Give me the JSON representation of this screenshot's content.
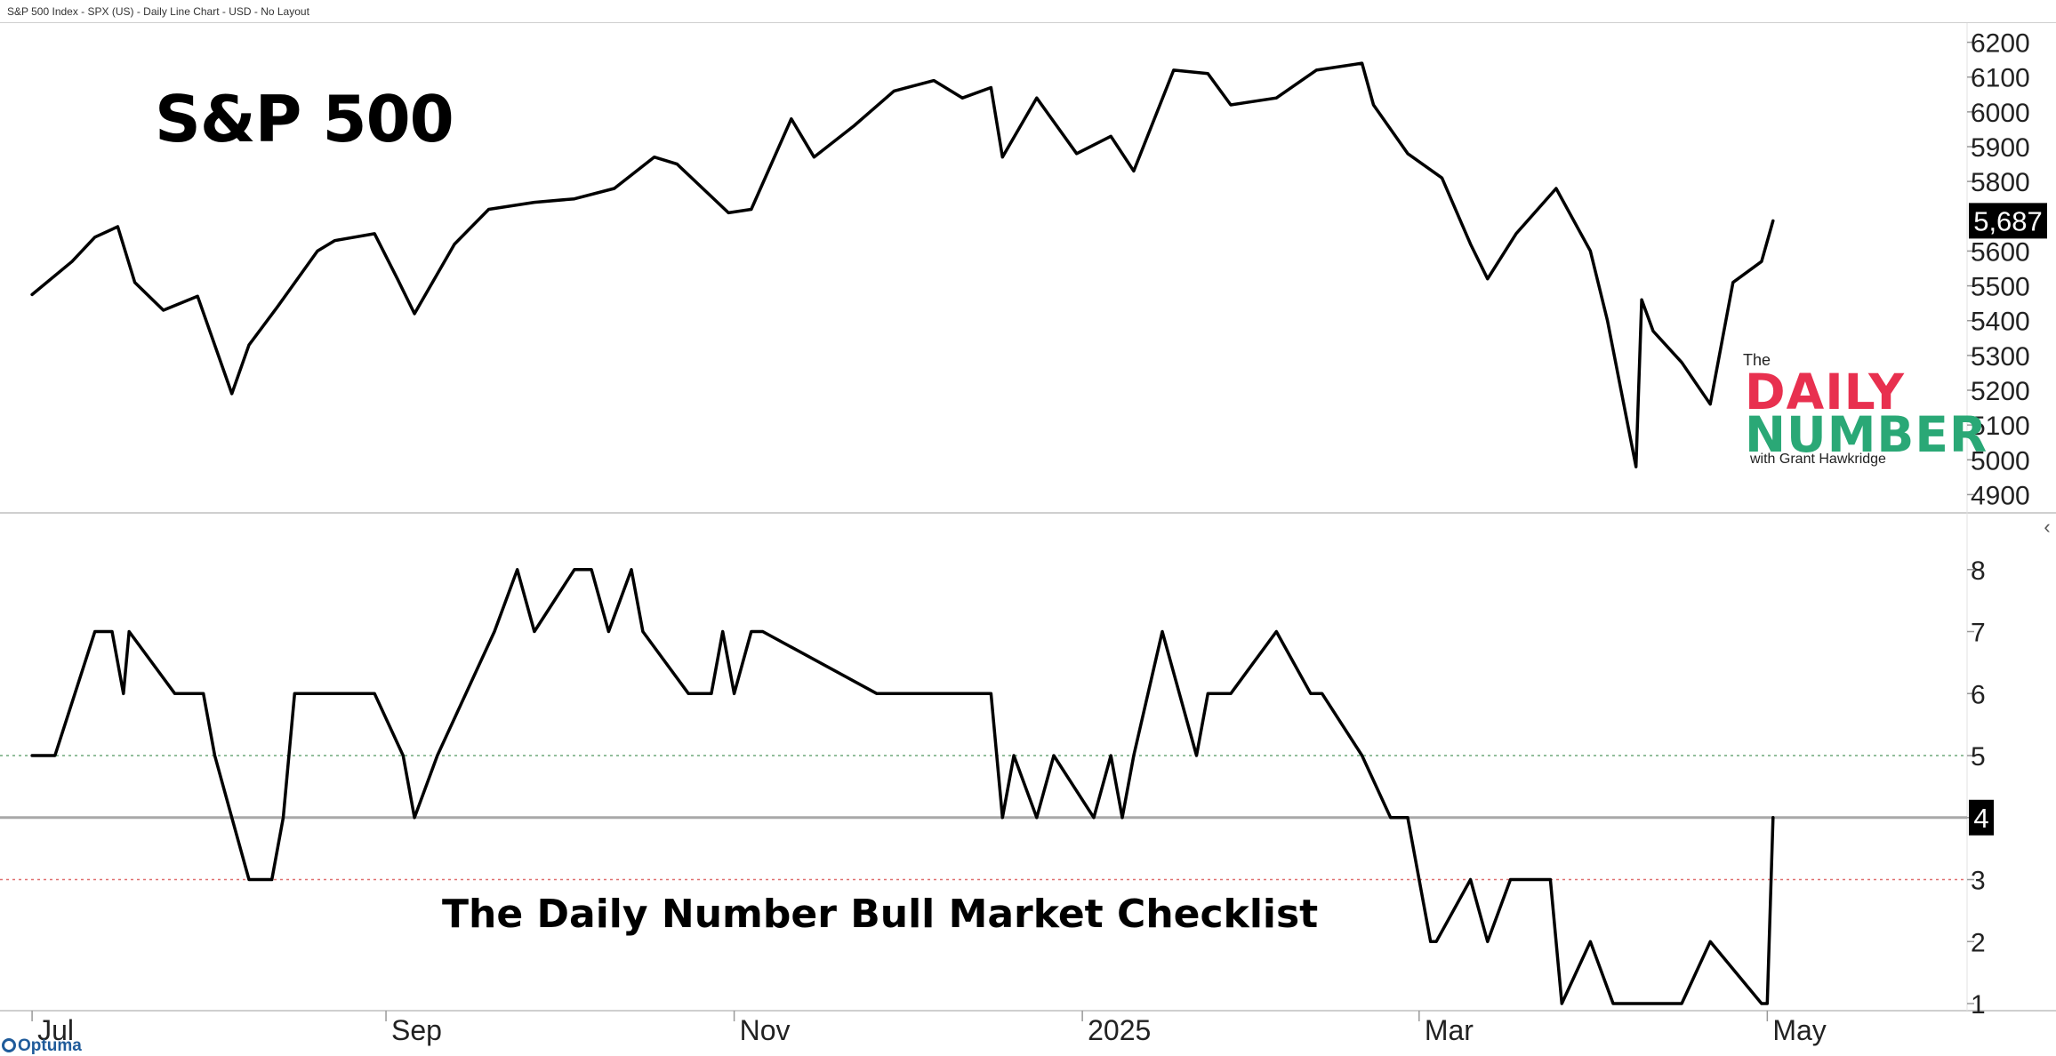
{
  "page_header": "S&P 500 Index - SPX (US) - Daily Line Chart - USD - No Layout",
  "logo": {
    "the": "The",
    "word1": "DAILY",
    "word2": "NUMBER",
    "byline": "with Grant Hawkridge",
    "red": "#e8304f",
    "green": "#2aa876"
  },
  "footer_brand": "Optuma",
  "side_arrow": "‹",
  "chart_data": [
    {
      "type": "line",
      "title": "S&P 500",
      "x": [
        "2024-07-01",
        "2024-07-08",
        "2024-07-12",
        "2024-07-16",
        "2024-07-19",
        "2024-07-24",
        "2024-07-30",
        "2024-08-05",
        "2024-08-08",
        "2024-08-13",
        "2024-08-20",
        "2024-08-23",
        "2024-08-30",
        "2024-09-03",
        "2024-09-06",
        "2024-09-13",
        "2024-09-19",
        "2024-09-27",
        "2024-10-04",
        "2024-10-11",
        "2024-10-18",
        "2024-10-22",
        "2024-10-31",
        "2024-11-04",
        "2024-11-11",
        "2024-11-15",
        "2024-11-22",
        "2024-11-29",
        "2024-12-06",
        "2024-12-11",
        "2024-12-16",
        "2024-12-18",
        "2024-12-24",
        "2024-12-31",
        "2025-01-06",
        "2025-01-10",
        "2025-01-17",
        "2025-01-23",
        "2025-01-27",
        "2025-02-04",
        "2025-02-11",
        "2025-02-19",
        "2025-02-21",
        "2025-02-27",
        "2025-03-05",
        "2025-03-10",
        "2025-03-13",
        "2025-03-18",
        "2025-03-25",
        "2025-03-31",
        "2025-04-03",
        "2025-04-08",
        "2025-04-09",
        "2025-04-11",
        "2025-04-16",
        "2025-04-21",
        "2025-04-25",
        "2025-04-30",
        "2025-05-02"
      ],
      "y": [
        5475,
        5570,
        5640,
        5670,
        5510,
        5430,
        5470,
        5190,
        5330,
        5440,
        5600,
        5630,
        5650,
        5520,
        5420,
        5620,
        5720,
        5740,
        5750,
        5780,
        5870,
        5850,
        5710,
        5720,
        5980,
        5870,
        5960,
        6060,
        6090,
        6040,
        6070,
        5870,
        6040,
        5880,
        5930,
        5830,
        6120,
        6110,
        6020,
        6040,
        6120,
        6140,
        6020,
        5880,
        5810,
        5620,
        5520,
        5650,
        5780,
        5600,
        5400,
        4980,
        5460,
        5370,
        5280,
        5160,
        5510,
        5570,
        5687
      ],
      "ylim": [
        4850,
        6250
      ],
      "yticks": [
        4900,
        5000,
        5100,
        5200,
        5300,
        5400,
        5500,
        5600,
        5800,
        5900,
        6000,
        6100,
        6200
      ],
      "last_value_label": "5,687"
    },
    {
      "type": "line",
      "title": "The Daily Number Bull Market Checklist",
      "x": [
        "2024-07-01",
        "2024-07-05",
        "2024-07-12",
        "2024-07-15",
        "2024-07-17",
        "2024-07-18",
        "2024-07-26",
        "2024-07-31",
        "2024-08-02",
        "2024-08-05",
        "2024-08-08",
        "2024-08-12",
        "2024-08-14",
        "2024-08-16",
        "2024-08-30",
        "2024-09-04",
        "2024-09-06",
        "2024-09-10",
        "2024-09-20",
        "2024-09-24",
        "2024-09-27",
        "2024-10-04",
        "2024-10-07",
        "2024-10-10",
        "2024-10-14",
        "2024-10-16",
        "2024-10-24",
        "2024-10-28",
        "2024-10-30",
        "2024-11-01",
        "2024-11-04",
        "2024-11-06",
        "2024-11-26",
        "2024-12-16",
        "2024-12-18",
        "2024-12-20",
        "2024-12-24",
        "2024-12-27",
        "2025-01-03",
        "2025-01-06",
        "2025-01-08",
        "2025-01-10",
        "2025-01-15",
        "2025-01-21",
        "2025-01-23",
        "2025-01-27",
        "2025-02-04",
        "2025-02-10",
        "2025-02-12",
        "2025-02-19",
        "2025-02-24",
        "2025-02-27",
        "2025-03-03",
        "2025-03-04",
        "2025-03-10",
        "2025-03-13",
        "2025-03-17",
        "2025-03-24",
        "2025-03-26",
        "2025-03-31",
        "2025-04-04",
        "2025-04-16",
        "2025-04-21",
        "2025-04-30",
        "2025-05-01",
        "2025-05-02"
      ],
      "y": [
        5,
        5,
        7,
        7,
        6,
        7,
        6,
        6,
        5,
        4,
        3,
        3,
        4,
        6,
        6,
        5,
        4,
        5,
        7,
        8,
        7,
        8,
        8,
        7,
        8,
        7,
        6,
        6,
        7,
        6,
        7,
        7,
        6,
        6,
        4,
        5,
        4,
        5,
        4,
        5,
        4,
        5,
        7,
        5,
        6,
        6,
        7,
        6,
        6,
        5,
        4,
        4,
        2,
        2,
        3,
        2,
        3,
        3,
        1,
        2,
        1,
        1,
        2,
        1,
        1,
        4
      ],
      "ylim": [
        0.9,
        8.9
      ],
      "yticks": [
        1,
        2,
        3,
        4,
        5,
        6,
        7,
        8
      ],
      "reference_lines": [
        {
          "value": 5,
          "color": "#6fa87a",
          "style": "dotted"
        },
        {
          "value": 4,
          "color": "#a8a8a8",
          "style": "solid"
        },
        {
          "value": 3,
          "color": "#e07070",
          "style": "dotted"
        }
      ],
      "last_value_label": "4"
    }
  ],
  "x_axis": {
    "range": [
      "2024-06-26",
      "2025-06-05"
    ],
    "labels": [
      {
        "date": "2024-07-01",
        "text": "Jul"
      },
      {
        "date": "2024-09-01",
        "text": "Sep"
      },
      {
        "date": "2024-11-01",
        "text": "Nov"
      },
      {
        "date": "2025-01-01",
        "text": "2025"
      },
      {
        "date": "2025-03-01",
        "text": "Mar"
      },
      {
        "date": "2025-05-01",
        "text": "May"
      }
    ]
  }
}
